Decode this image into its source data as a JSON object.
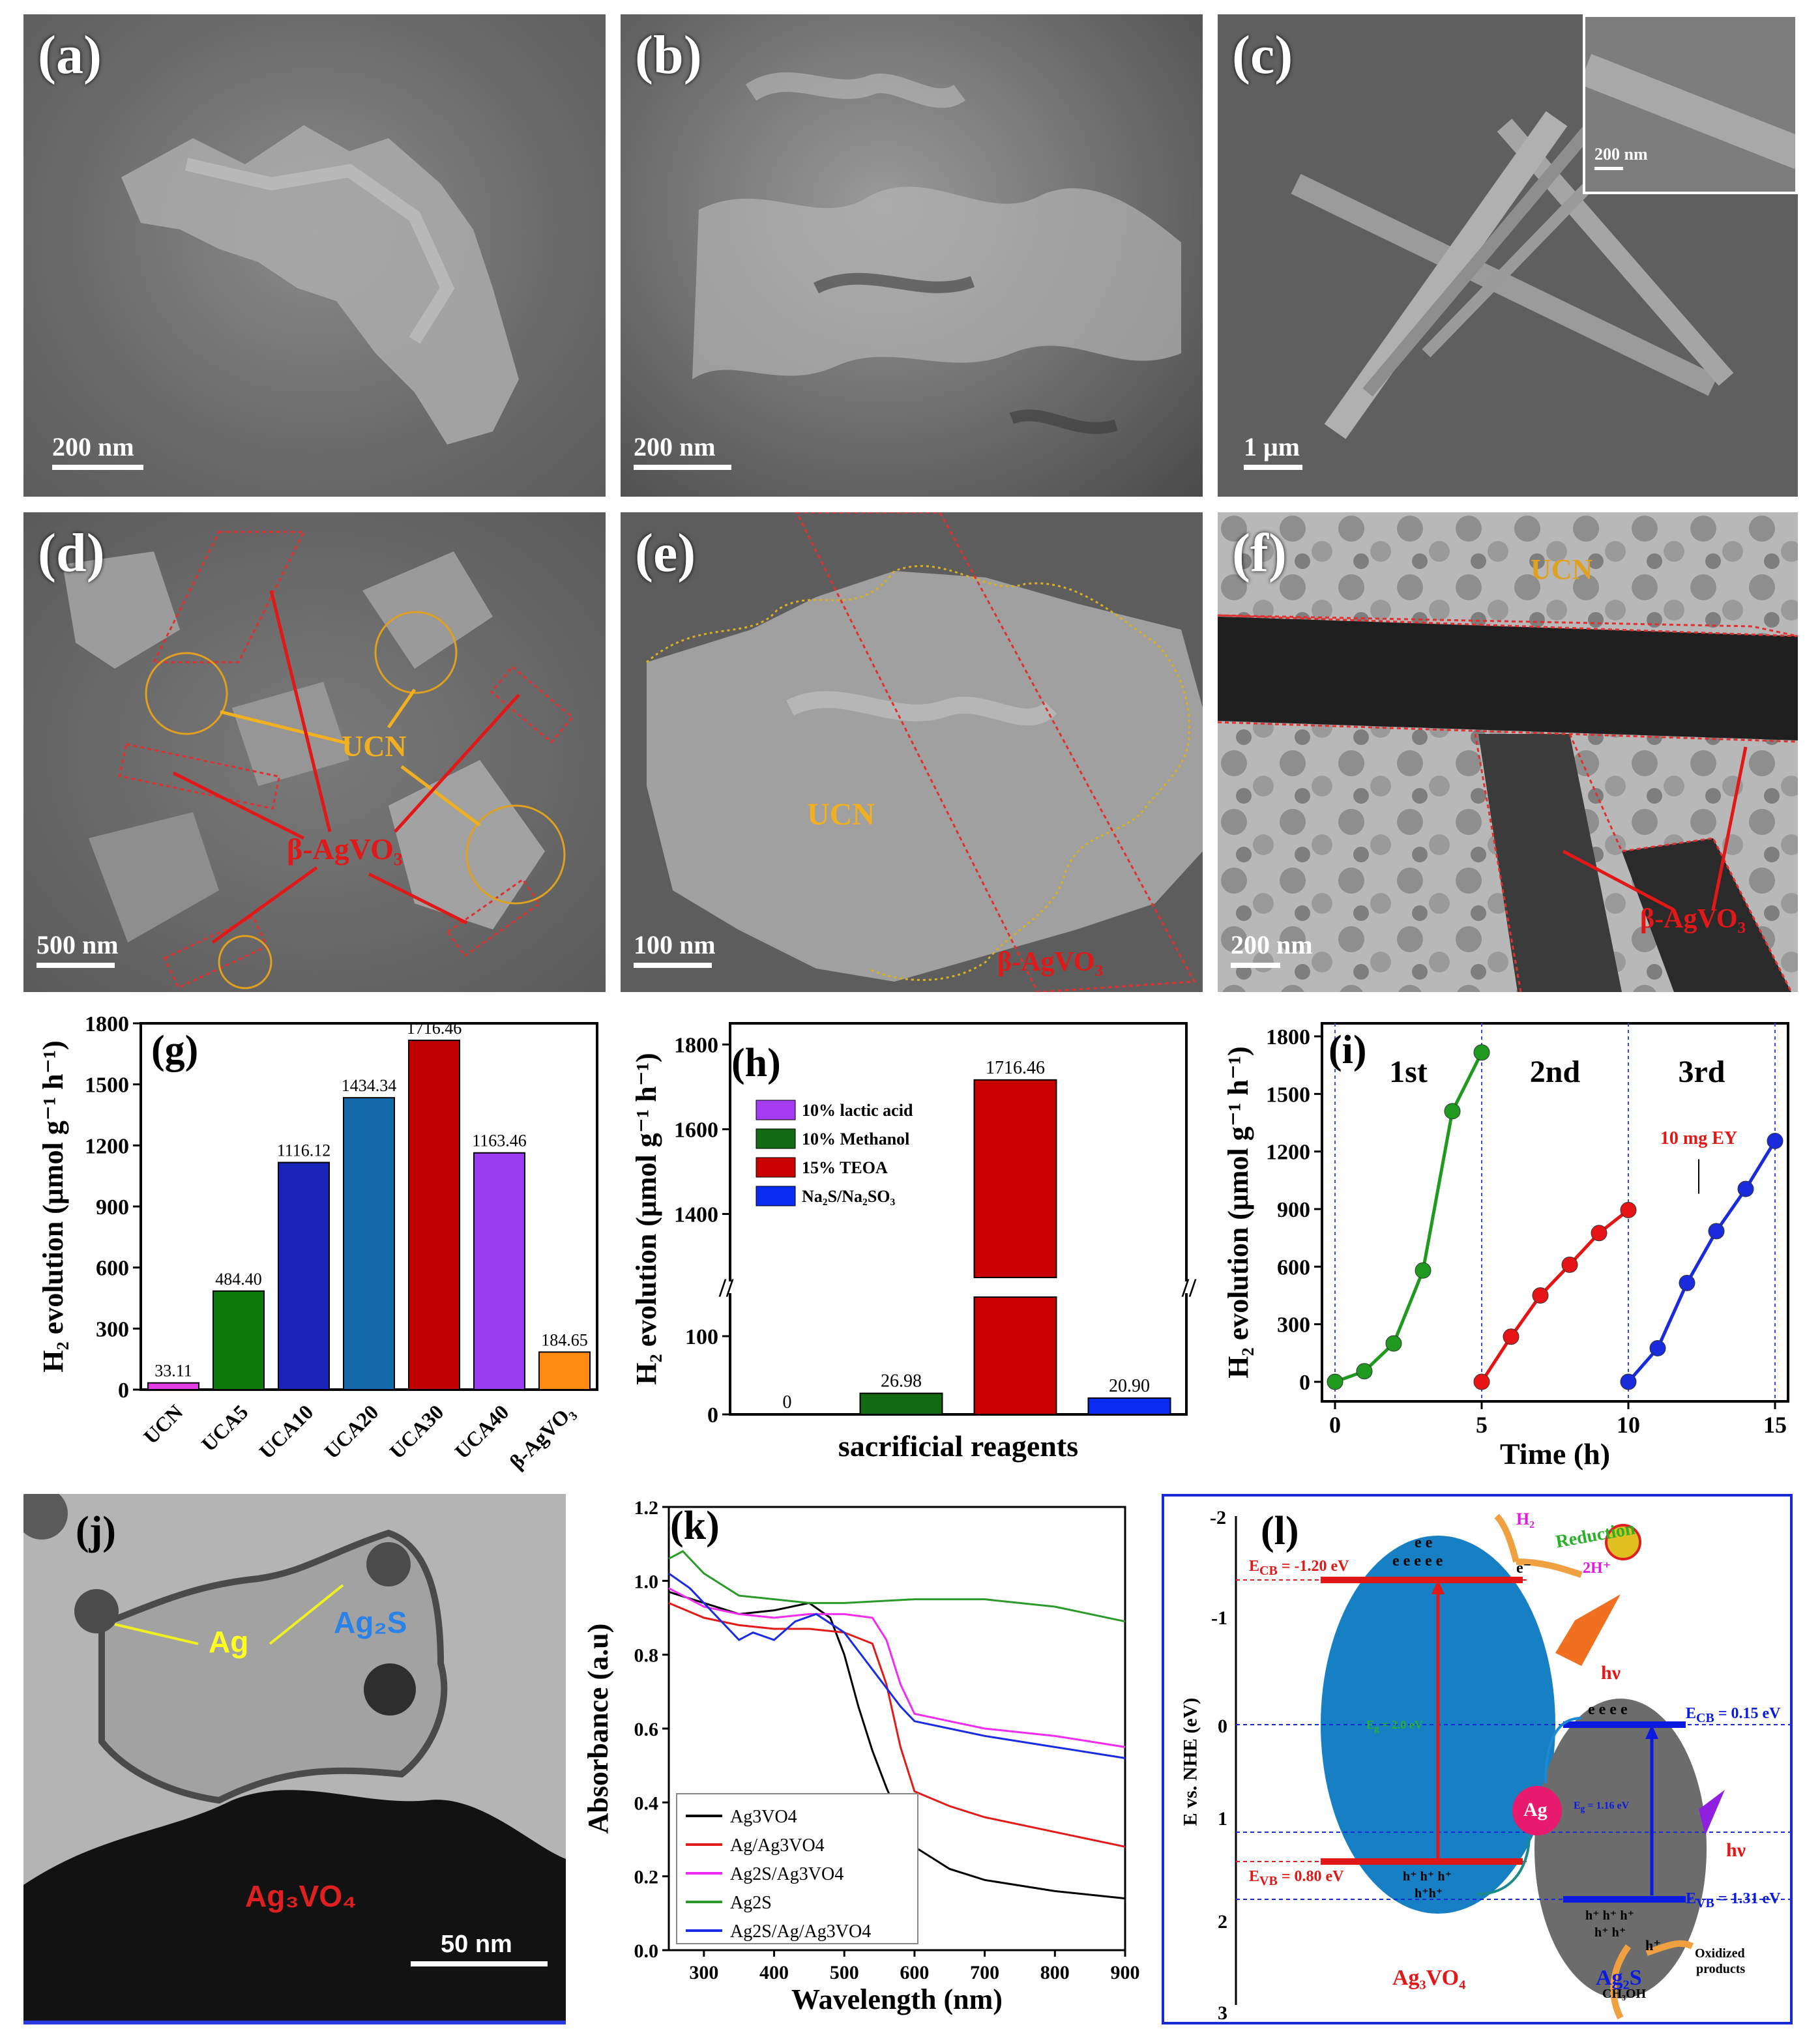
{
  "panels": {
    "a": {
      "label": "(a)",
      "scale": "200 nm"
    },
    "b": {
      "label": "(b)",
      "scale": "200 nm"
    },
    "c": {
      "label": "(c)",
      "scale": "1 μm",
      "inset_scale": "200 nm"
    },
    "d": {
      "label": "(d)",
      "scale": "500 nm",
      "ucn": "UCN",
      "agvo": "β-AgVO₃"
    },
    "e": {
      "label": "(e)",
      "scale": "100 nm",
      "ucn": "UCN",
      "agvo": "β-AgVO₃"
    },
    "f": {
      "label": "(f)",
      "scale": "200 nm",
      "ucn": "UCN",
      "agvo": "β-AgVO₃"
    },
    "j": {
      "label": "(j)",
      "scale": "50 nm",
      "ag": "Ag",
      "ag2s": "Ag₂S",
      "ag3vo4": "Ag₃VO₄"
    },
    "l": {
      "label": "(l)",
      "ylabel": "E vs. NHE (eV)",
      "yticks": [
        "-2",
        "-1",
        "0",
        "1",
        "2",
        "3"
      ],
      "ecb_left": "E",
      "ecb_left_sub": "CB",
      "ecb_left_val": " = -1.20 eV",
      "evb_left": "E",
      "evb_left_sub": "VB",
      "evb_left_val": " = 0.80 eV",
      "eg_left": "E",
      "eg_left_sub": "g",
      "eg_left_val": " = 2.0 eV",
      "ecb_right": "E",
      "ecb_right_sub": "CB",
      "ecb_right_val": " = 0.15 eV",
      "evb_right": "E",
      "evb_right_sub": "VB",
      "evb_right_val": " = 1.31 eV",
      "eg_right": "E",
      "eg_right_sub": "g",
      "eg_right_val": " = 1.16 eV",
      "h2": "H₂",
      "reduction": "Reduction",
      "two_h": "2H⁺",
      "e_minus": "e⁻",
      "hv": "hν",
      "ag": "Ag",
      "hplus": "h⁺",
      "ch3oh": "CH₃OH",
      "oxidized1": "Oxidized",
      "oxidized2": "products",
      "left_name": "Ag₃VO₄",
      "right_name": "Ag₂S",
      "electrons_top": "e e",
      "electrons_bottom": "e e e e e",
      "electrons_right": "e e e e",
      "holes_left1": "h⁺ h⁺ h⁺",
      "holes_left2": "h⁺h⁺",
      "holes_right1": "h⁺ h⁺ h⁺",
      "holes_right2": "h⁺ h⁺"
    }
  },
  "chart_data": [
    {
      "panel": "(g)",
      "type": "bar",
      "categories": [
        "UCN",
        "UCA5",
        "UCA10",
        "UCA20",
        "UCA30",
        "UCA40",
        "β-AgVO₃"
      ],
      "values": [
        33.11,
        484.4,
        1116.12,
        1434.34,
        1716.46,
        1163.46,
        184.65
      ],
      "value_labels": [
        "33.11",
        "484.40",
        "1116.12",
        "1434.34",
        "1716.46",
        "1163.46",
        "184.65"
      ],
      "colors": [
        "#e23ee6",
        "#0b7a0b",
        "#1b24b8",
        "#1469aa",
        "#c00000",
        "#9a3df0",
        "#ff8c10"
      ],
      "ylabel": "H₂ evolution (μmol g⁻¹ h⁻¹)",
      "ylim": [
        0,
        1800
      ],
      "yticks": [
        "0",
        "300",
        "600",
        "900",
        "1200",
        "1500",
        "1800"
      ]
    },
    {
      "panel": "(h)",
      "type": "bar",
      "xlabel": "sacrificial reagents",
      "ylabel": "H₂ evolution (μmol g⁻¹ h⁻¹)",
      "values": [
        0,
        26.98,
        1716.46,
        20.9
      ],
      "value_labels": [
        "0",
        "26.98",
        "1716.46",
        "20.90"
      ],
      "colors": [
        "#a33cf0",
        "#136a13",
        "#c80000",
        "#0a2cf0"
      ],
      "legend": [
        "10% lactic acid",
        "10% Methanol",
        "15% TEOA",
        "Na₂S/Na₂SO₃"
      ],
      "yticks_low": [
        "0",
        "100"
      ],
      "yticks_high": [
        "1400",
        "1600",
        "1800"
      ],
      "axis_break": [
        150,
        1250
      ]
    },
    {
      "panel": "(i)",
      "type": "line",
      "xlabel": "Time (h)",
      "ylabel": "H₂ evolution (μmol g⁻¹ h⁻¹)",
      "xlim": [
        0,
        15
      ],
      "ylim": [
        0,
        1800
      ],
      "xticks": [
        "0",
        "5",
        "10",
        "15"
      ],
      "yticks": [
        "0",
        "300",
        "600",
        "900",
        "1200",
        "1500",
        "1800"
      ],
      "series": [
        {
          "name": "1st",
          "color": "#1f9a1f",
          "x": [
            0,
            1,
            2,
            3,
            4,
            5
          ],
          "y": [
            0,
            55,
            200,
            580,
            1410,
            1716
          ]
        },
        {
          "name": "2nd",
          "color": "#e61414",
          "x": [
            5,
            6,
            7,
            8,
            9,
            10
          ],
          "y": [
            0,
            235,
            450,
            610,
            775,
            895
          ]
        },
        {
          "name": "3rd",
          "color": "#1a2bdc",
          "x": [
            10,
            11,
            12,
            13,
            14,
            15
          ],
          "y": [
            0,
            175,
            515,
            785,
            1005,
            1255
          ]
        }
      ],
      "annotation": "10 mg EY"
    },
    {
      "panel": "(k)",
      "type": "line",
      "xlabel": "Wavelength (nm)",
      "ylabel": "Absorbance (a.u)",
      "xlim": [
        250,
        900
      ],
      "ylim": [
        0,
        1.2
      ],
      "xticks": [
        "300",
        "400",
        "500",
        "600",
        "700",
        "800",
        "900"
      ],
      "yticks": [
        "0.0",
        "0.2",
        "0.4",
        "0.6",
        "0.8",
        "1.0",
        "1.2"
      ],
      "series": [
        {
          "name": "Ag3VO4",
          "color": "#000000",
          "x": [
            250,
            300,
            350,
            400,
            450,
            480,
            500,
            520,
            540,
            560,
            580,
            600,
            650,
            700,
            800,
            900
          ],
          "y": [
            0.97,
            0.94,
            0.91,
            0.92,
            0.94,
            0.9,
            0.8,
            0.66,
            0.54,
            0.44,
            0.35,
            0.28,
            0.22,
            0.19,
            0.16,
            0.14
          ]
        },
        {
          "name": "Ag/Ag3VO4",
          "color": "#e41a1a",
          "x": [
            250,
            300,
            350,
            400,
            450,
            500,
            540,
            560,
            580,
            600,
            650,
            700,
            800,
            900
          ],
          "y": [
            0.94,
            0.9,
            0.88,
            0.87,
            0.87,
            0.86,
            0.83,
            0.72,
            0.55,
            0.43,
            0.39,
            0.36,
            0.32,
            0.28
          ]
        },
        {
          "name": "Ag2S/Ag3VO4",
          "color": "#f02cf0",
          "x": [
            250,
            300,
            350,
            400,
            450,
            500,
            540,
            560,
            580,
            600,
            650,
            700,
            800,
            900
          ],
          "y": [
            0.98,
            0.93,
            0.91,
            0.9,
            0.91,
            0.91,
            0.9,
            0.84,
            0.72,
            0.64,
            0.62,
            0.6,
            0.58,
            0.55
          ]
        },
        {
          "name": "Ag2S",
          "color": "#2b9a2b",
          "x": [
            250,
            270,
            300,
            350,
            400,
            450,
            500,
            600,
            700,
            800,
            900
          ],
          "y": [
            1.06,
            1.08,
            1.02,
            0.96,
            0.95,
            0.94,
            0.94,
            0.95,
            0.95,
            0.93,
            0.89
          ]
        },
        {
          "name": "Ag2S/Ag/Ag3VO4",
          "color": "#1a2be6",
          "x": [
            250,
            280,
            320,
            350,
            370,
            400,
            430,
            460,
            500,
            540,
            580,
            600,
            650,
            700,
            800,
            900
          ],
          "y": [
            1.02,
            0.98,
            0.9,
            0.84,
            0.86,
            0.84,
            0.89,
            0.91,
            0.86,
            0.76,
            0.66,
            0.62,
            0.6,
            0.58,
            0.55,
            0.52
          ]
        }
      ]
    }
  ]
}
